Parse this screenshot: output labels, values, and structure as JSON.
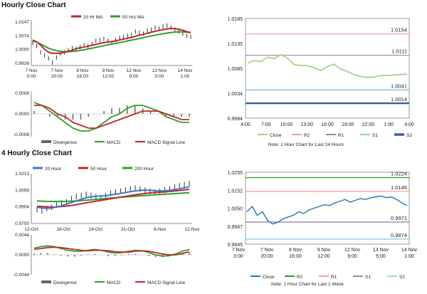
{
  "sections": {
    "hourly_title": "Hourly Close Chart",
    "four_hourly_title": "4 Hourly Close Chart"
  },
  "colors": {
    "close_line": "#a5d18a",
    "close_line_blue": "#1f77b4",
    "candle": "#000000",
    "ma_red": "#c0262b",
    "ma_green": "#2ca02c",
    "ma_blue": "#3c78c8",
    "r2": "#f2a0a0",
    "r1": "#a080b0",
    "s1": "#8ec8e8",
    "s2": "#3a5f9a",
    "s2_light": "#9fd3e8",
    "grid": "#9c9c9c",
    "divergence": "#666666",
    "macd": "#2ca02c",
    "signal": "#c0262b"
  },
  "chart_data": [
    {
      "id": "hourly-price",
      "type": "line",
      "legend": [
        "20 Hr MA",
        "50 Hrs MA"
      ],
      "x_ticks": [
        [
          "7 Nov",
          "0:00"
        ],
        [
          "7 Nov",
          "20:00"
        ],
        [
          "8 Nov",
          "16:00"
        ],
        [
          "9 Nov",
          "12:00"
        ],
        [
          "12 Nov",
          "9:00"
        ],
        [
          "13 Nov",
          "5:00"
        ],
        [
          "14 Nov",
          "1:00"
        ]
      ],
      "y_ticks": [
        "1.0147",
        "1.0074",
        "1.0000",
        "0.9926"
      ],
      "ylim": [
        0.9926,
        1.0147
      ],
      "close": [
        1.0035,
        1.002,
        0.999,
        0.9975,
        0.996,
        0.994,
        0.9965,
        0.9985,
        0.999,
        1.0,
        1.001,
        1.0005,
        1.0015,
        1.0025,
        1.002,
        1.003,
        1.0045,
        1.005,
        1.0055,
        1.0045,
        1.0035,
        1.005,
        1.006,
        1.0065,
        1.007,
        1.0075,
        1.009,
        1.0085,
        1.008,
        1.0095,
        1.01,
        1.011,
        1.0105,
        1.0115,
        1.012,
        1.011,
        1.01,
        1.009,
        1.008,
        1.007,
        1.0065
      ],
      "ma20": [
        1.005,
        1.004,
        1.0025,
        1.0005,
        0.999,
        0.9985,
        0.9985,
        0.9985,
        0.999,
        0.9995,
        1.0,
        1.0008,
        1.0012,
        1.0015,
        1.002,
        1.0024,
        1.0028,
        1.0033,
        1.0037,
        1.004,
        1.0042,
        1.0045,
        1.005,
        1.0054,
        1.0058,
        1.0062,
        1.0068,
        1.0073,
        1.0077,
        1.0082,
        1.0087,
        1.0092,
        1.0096,
        1.01,
        1.0104,
        1.0106,
        1.0105,
        1.0102,
        1.0097,
        1.009,
        1.0085
      ],
      "ma50": [
        1.0045,
        1.004,
        1.003,
        1.002,
        1.001,
        1.0003,
        0.9998,
        0.9995,
        0.9993,
        0.9993,
        0.9994,
        0.9996,
        0.9999,
        1.0002,
        1.0006,
        1.001,
        1.0014,
        1.0018,
        1.0022,
        1.0026,
        1.003,
        1.0033,
        1.0037,
        1.0041,
        1.0045,
        1.0049,
        1.0053,
        1.0057,
        1.0061,
        1.0065,
        1.0069,
        1.0073,
        1.0077,
        1.008,
        1.0083,
        1.0086,
        1.0088,
        1.0089,
        1.0089,
        1.0088,
        1.0087
      ]
    },
    {
      "id": "hourly-macd",
      "type": "line",
      "legend": [
        "Divergence",
        "MACD",
        "MACD Signal Line"
      ],
      "y_ticks": [
        "0.0008",
        "0.0000",
        "-0.0008"
      ],
      "ylim": [
        -0.0008,
        0.0008
      ],
      "macd": [
        0.0004,
        0.0003,
        0.0001,
        -0.0001,
        -0.0003,
        -0.0005,
        -0.0006,
        -0.0006,
        -0.0005,
        -0.0003,
        -0.0001,
        0.0,
        0.0002,
        0.0003,
        0.0003,
        0.0002,
        0.0001,
        -0.0001,
        -0.0002,
        -0.0003,
        -0.0003
      ],
      "signal": [
        0.0003,
        0.0003,
        0.0002,
        0.0,
        -0.0001,
        -0.0003,
        -0.0004,
        -0.0005,
        -0.0005,
        -0.0004,
        -0.0003,
        -0.0002,
        -0.0001,
        0.0,
        0.0001,
        0.0001,
        0.0001,
        0.0,
        -0.0001,
        -0.0002,
        -0.0002
      ],
      "divergence": [
        0.0001,
        0.0,
        -0.0001,
        -0.0001,
        -0.0002,
        -0.0002,
        -0.0002,
        -0.0001,
        0.0,
        0.0001,
        0.0002,
        0.0002,
        0.0003,
        0.0003,
        0.0002,
        0.0001,
        0.0,
        -0.0001,
        -0.0001,
        -0.0001,
        -0.0001
      ]
    },
    {
      "id": "hourly-24h",
      "type": "line",
      "x_ticks": [
        "4:00",
        "7:00",
        "10:00",
        "13:00",
        "16:00",
        "19:00",
        "22:00",
        "1:00",
        "4:00"
      ],
      "y_ticks": [
        "1.0185",
        "1.0135",
        "1.0085",
        "1.0034",
        "0.9984"
      ],
      "ylim": [
        0.9984,
        1.0185
      ],
      "close": [
        1.0095,
        1.01,
        1.0098,
        1.0107,
        1.0104,
        1.0112,
        1.0105,
        1.0092,
        1.009,
        1.009,
        1.0086,
        1.008,
        1.0088,
        1.0093,
        1.0083,
        1.0078,
        1.0072,
        1.0068,
        1.0066,
        1.0067,
        1.007,
        1.007,
        1.0071,
        1.0072,
        1.0073
      ],
      "levels": {
        "R2": 1.0154,
        "R1": 1.0111,
        "S1": 1.0041,
        "S2": 1.0014
      },
      "level_labels": [
        "1.0154",
        "1.0111",
        "1.0041",
        "1.0014"
      ],
      "legend": [
        "Close",
        "R2",
        "R1",
        "S1",
        "S2"
      ],
      "note": "Note: 1 Hour Chart for Last 24 Hours"
    },
    {
      "id": "four-hourly-price",
      "type": "line",
      "legend": [
        "20 Hour",
        "50 Hour",
        "200 Hour"
      ],
      "x_ticks": [
        "12-Oct",
        "18-Oct",
        "24-Oct",
        "31-Oct",
        "6-Nov",
        "12-Nov"
      ],
      "y_ticks": [
        "1.0213",
        "1.0059",
        "0.9904",
        "0.9750"
      ],
      "ylim": [
        0.975,
        1.0213
      ],
      "close": [
        0.988,
        0.987,
        0.989,
        0.99,
        0.992,
        0.994,
        0.995,
        0.998,
        1.0,
        1.001,
        1.002,
        1.001,
        1.0,
        0.999,
        1.001,
        1.003,
        1.004,
        1.005,
        1.006,
        1.007,
        1.008,
        1.007,
        1.006,
        1.005,
        1.004,
        1.005,
        1.006,
        1.007,
        1.009,
        1.01,
        1.011,
        1.012
      ],
      "ma20": [
        0.99,
        0.9895,
        0.989,
        0.9895,
        0.9905,
        0.9915,
        0.993,
        0.9945,
        0.996,
        0.9975,
        0.999,
        0.9998,
        1.0003,
        1.0005,
        1.0008,
        1.0015,
        1.0022,
        1.003,
        1.0038,
        1.0046,
        1.0053,
        1.0058,
        1.006,
        1.0058,
        1.0055,
        1.0053,
        1.0054,
        1.0058,
        1.0065,
        1.0073,
        1.0082,
        1.0092
      ],
      "ma50": [
        0.991,
        0.9908,
        0.9905,
        0.9903,
        0.9905,
        0.9908,
        0.9912,
        0.9918,
        0.9925,
        0.9933,
        0.9942,
        0.995,
        0.9958,
        0.9965,
        0.9972,
        0.998,
        0.9988,
        0.9995,
        1.0002,
        1.001,
        1.0017,
        1.0023,
        1.0029,
        1.0034,
        1.0038,
        1.0041,
        1.0044,
        1.0048,
        1.0052,
        1.0057,
        1.0062,
        1.0068
      ],
      "ma200": [
        0.996,
        0.9958,
        0.9956,
        0.9955,
        0.9955,
        0.9955,
        0.9956,
        0.9958,
        0.996,
        0.9963,
        0.9966,
        0.997,
        0.9974,
        0.9978,
        0.9982,
        0.9986,
        0.999,
        0.9994,
        0.9998,
        1.0001,
        1.0004,
        1.0007,
        1.001,
        1.0013,
        1.0016,
        1.0019,
        1.0022,
        1.0025,
        1.0028,
        1.0031,
        1.0034,
        1.0037
      ]
    },
    {
      "id": "four-hourly-macd",
      "type": "line",
      "legend": [
        "Divergence",
        "MACD",
        "MACD Signal Line"
      ],
      "y_ticks": [
        "0.0044",
        "0.0000",
        "-0.0044"
      ],
      "ylim": [
        -0.0044,
        0.0044
      ],
      "macd": [
        0.0015,
        0.0018,
        0.002,
        0.0018,
        0.0014,
        0.001,
        0.0008,
        0.0008,
        0.001,
        0.0012,
        0.001,
        0.0006,
        0.0004,
        0.0005,
        0.0008,
        0.001,
        0.0009,
        0.0005,
        0.0,
        -0.0003,
        -0.0002,
        0.0002,
        0.0008,
        0.0012
      ],
      "signal": [
        0.0012,
        0.0014,
        0.0016,
        0.0017,
        0.0016,
        0.0014,
        0.0012,
        0.001,
        0.0009,
        0.001,
        0.001,
        0.0009,
        0.0007,
        0.0006,
        0.0006,
        0.0008,
        0.0009,
        0.0008,
        0.0005,
        0.0002,
        0.0,
        0.0,
        0.0003,
        0.0007
      ],
      "divergence": [
        0.0003,
        0.0004,
        0.0004,
        0.0001,
        -0.0002,
        -0.0004,
        -0.0004,
        -0.0002,
        0.0001,
        0.0002,
        0.0,
        -0.0003,
        -0.0003,
        -0.0001,
        0.0002,
        0.0002,
        0.0,
        -0.0003,
        -0.0005,
        -0.0005,
        -0.0002,
        0.0002,
        0.0005,
        0.0005
      ]
    },
    {
      "id": "weekly-1h",
      "type": "line",
      "x_ticks": [
        [
          "7 Nov",
          "0:00"
        ],
        [
          "7 Nov",
          "20:00"
        ],
        [
          "8 Nov",
          "16:00"
        ],
        [
          "9 Nov",
          "12:00"
        ],
        [
          "12 Nov",
          "9:00"
        ],
        [
          "13 Nov",
          "5:00"
        ],
        [
          "14 Nov",
          "1:00"
        ]
      ],
      "y_ticks": [
        "1.0255",
        "1.0152",
        "1.0050",
        "0.9947",
        "0.9845"
      ],
      "ylim": [
        0.9845,
        1.0255
      ],
      "close": [
        1.003,
        1.006,
        1.001,
        1.003,
        0.998,
        0.996,
        0.997,
        0.999,
        1.0,
        1.001,
        1.003,
        1.002,
        1.004,
        1.005,
        1.006,
        1.007,
        1.0065,
        1.008,
        1.009,
        1.01,
        1.0085,
        1.0095,
        1.0105,
        1.01,
        1.011,
        1.0115,
        1.012,
        1.011,
        1.0115,
        1.01,
        1.008,
        1.0065
      ],
      "levels": {
        "R2": 1.0224,
        "R1": 1.0146,
        "S1": 0.9971,
        "S2": 0.9874
      },
      "level_labels": [
        "1.0224",
        "1.0146",
        "0.9971",
        "0.9874"
      ],
      "legend": [
        "Close",
        "R2",
        "R1",
        "S1",
        "S2"
      ],
      "note": "Note: 1 Hour Chart for Last 1 Week"
    }
  ]
}
